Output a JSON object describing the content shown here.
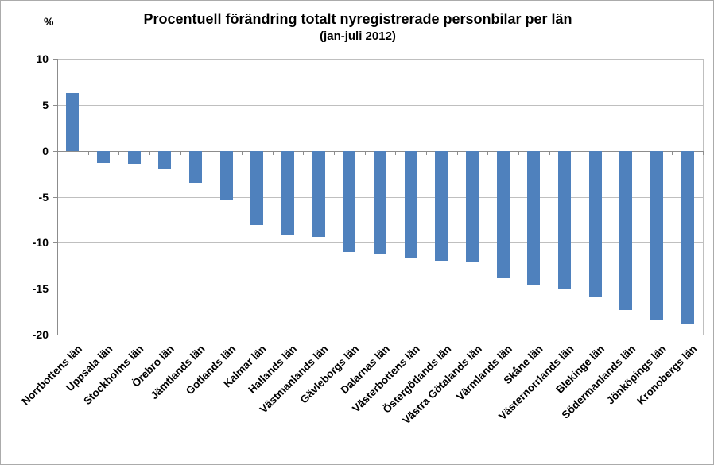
{
  "page": {
    "border_color": "#ababab",
    "background_color": "#ffffff",
    "text_color": "#000000"
  },
  "chart_data": {
    "type": "bar",
    "title": "Procentuell förändring totalt nyregistrerade personbilar per län",
    "subtitle": "(jan-juli 2012)",
    "y_axis_unit_label": "%",
    "xlabel": "",
    "ylabel": "%",
    "categories": [
      "Norrbottens län",
      "Uppsala län",
      "Stockholms län",
      "Örebro län",
      "Jämtlands län",
      "Gotlands län",
      "Kalmar län",
      "Hallands län",
      "Västmanlands län",
      "Gävleborgs län",
      "Dalarnas län",
      "Västerbottens län",
      "Östergötlands län",
      "Västra Götalands län",
      "Värmlands län",
      "Skåne län",
      "Västernorrlands län",
      "Blekinge län",
      "Södermanlands län",
      "Jönköpings län",
      "Kronobergs län"
    ],
    "values": [
      6.3,
      -1.3,
      -1.4,
      -1.9,
      -3.5,
      -5.4,
      -8.1,
      -9.2,
      -9.4,
      -11.0,
      -11.2,
      -11.6,
      -12.0,
      -12.1,
      -13.9,
      -14.6,
      -15.0,
      -15.9,
      -17.3,
      -18.4,
      -18.8
    ],
    "ylim": [
      -20,
      10
    ],
    "yticks": [
      10,
      5,
      0,
      -5,
      -10,
      -15,
      -20
    ],
    "grid": true,
    "legend": "none",
    "x_tick_rotation_deg": 45,
    "bar_color": "#4f81bd",
    "gridline_color": "#bfbfbf",
    "axis_color": "#8c8c8c"
  }
}
